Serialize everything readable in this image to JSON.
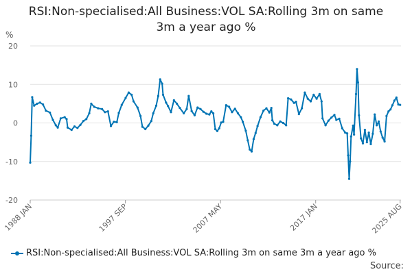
{
  "page": {
    "title_line1": "RSI:Non-specialised:All Business:VOL SA:Rolling 3m on same",
    "title_line2": "3m a year ago %",
    "source_label": "Source:",
    "series_color": "#0074b4",
    "legend_label": "RSI:Non-specialised:All Business:VOL SA:Rolling 3m on same 3m a year ago %"
  },
  "chart_data": {
    "type": "line",
    "title": "RSI:Non-specialised:All Business:VOL SA:Rolling 3m on same 3m a year ago %",
    "ylabel": "%",
    "xlabel": "",
    "ylim": [
      -20,
      20
    ],
    "yticks": [
      20,
      10,
      0,
      -10,
      -20
    ],
    "xlim": [
      1988.0,
      2025.67
    ],
    "xticks": [
      {
        "x": 1988.0,
        "label": "1988 JAN"
      },
      {
        "x": 1997.67,
        "label": "1997 SEP"
      },
      {
        "x": 2007.33,
        "label": "2007 MAY"
      },
      {
        "x": 2017.0,
        "label": "2017 JAN"
      },
      {
        "x": 2025.58,
        "label": "2025 AUG"
      }
    ],
    "grid": true,
    "legend": "bottom",
    "series": [
      {
        "name": "RSI:Non-specialised:All Business:VOL SA:Rolling 3m on same 3m a year ago %",
        "points": [
          [
            1988.0,
            -10.3
          ],
          [
            1988.1,
            -3.3
          ],
          [
            1988.2,
            6.7
          ],
          [
            1988.4,
            4.5
          ],
          [
            1988.7,
            5.0
          ],
          [
            1989.0,
            5.3
          ],
          [
            1989.3,
            4.8
          ],
          [
            1989.6,
            3.2
          ],
          [
            1990.0,
            2.7
          ],
          [
            1990.3,
            0.8
          ],
          [
            1990.6,
            -0.6
          ],
          [
            1990.8,
            -1.2
          ],
          [
            1991.1,
            1.2
          ],
          [
            1991.5,
            1.5
          ],
          [
            1991.7,
            1.0
          ],
          [
            1991.8,
            -1.2
          ],
          [
            1992.2,
            -1.8
          ],
          [
            1992.5,
            -0.9
          ],
          [
            1992.8,
            -1.3
          ],
          [
            1993.1,
            -0.5
          ],
          [
            1993.4,
            0.5
          ],
          [
            1993.7,
            1.0
          ],
          [
            1994.0,
            2.5
          ],
          [
            1994.2,
            5.0
          ],
          [
            1994.5,
            4.2
          ],
          [
            1994.9,
            3.8
          ],
          [
            1995.3,
            3.6
          ],
          [
            1995.6,
            2.8
          ],
          [
            1995.9,
            3.0
          ],
          [
            1996.2,
            -0.8
          ],
          [
            1996.5,
            0.3
          ],
          [
            1996.8,
            0.2
          ],
          [
            1997.0,
            2.6
          ],
          [
            1997.3,
            4.7
          ],
          [
            1997.7,
            6.5
          ],
          [
            1998.0,
            7.9
          ],
          [
            1998.3,
            7.3
          ],
          [
            1998.5,
            5.6
          ],
          [
            1998.9,
            4.0
          ],
          [
            1999.2,
            1.8
          ],
          [
            1999.4,
            -1.0
          ],
          [
            1999.7,
            -1.6
          ],
          [
            2000.0,
            -0.7
          ],
          [
            2000.3,
            0.5
          ],
          [
            2000.5,
            2.5
          ],
          [
            2000.8,
            4.5
          ],
          [
            2001.0,
            7.0
          ],
          [
            2001.2,
            11.3
          ],
          [
            2001.4,
            10.2
          ],
          [
            2001.5,
            7.3
          ],
          [
            2001.8,
            5.3
          ],
          [
            2002.0,
            4.4
          ],
          [
            2002.3,
            2.8
          ],
          [
            2002.6,
            5.9
          ],
          [
            2002.9,
            5.0
          ],
          [
            2003.2,
            3.9
          ],
          [
            2003.6,
            2.5
          ],
          [
            2003.9,
            3.6
          ],
          [
            2004.1,
            7.0
          ],
          [
            2004.4,
            3.1
          ],
          [
            2004.7,
            2.0
          ],
          [
            2005.0,
            4.0
          ],
          [
            2005.3,
            3.6
          ],
          [
            2005.6,
            2.9
          ],
          [
            2005.9,
            2.4
          ],
          [
            2006.2,
            2.2
          ],
          [
            2006.4,
            3.0
          ],
          [
            2006.6,
            2.5
          ],
          [
            2006.8,
            -1.6
          ],
          [
            2007.0,
            -2.1
          ],
          [
            2007.2,
            -1.4
          ],
          [
            2007.4,
            0.1
          ],
          [
            2007.6,
            0.3
          ],
          [
            2007.9,
            4.6
          ],
          [
            2008.2,
            4.2
          ],
          [
            2008.5,
            2.8
          ],
          [
            2008.8,
            3.7
          ],
          [
            2009.1,
            2.5
          ],
          [
            2009.4,
            1.5
          ],
          [
            2009.6,
            0.3
          ],
          [
            2009.9,
            -2.0
          ],
          [
            2010.1,
            -4.5
          ],
          [
            2010.3,
            -6.9
          ],
          [
            2010.5,
            -7.4
          ],
          [
            2010.7,
            -4.2
          ],
          [
            2010.9,
            -2.6
          ],
          [
            2011.1,
            -0.8
          ],
          [
            2011.4,
            1.5
          ],
          [
            2011.7,
            3.2
          ],
          [
            2012.0,
            3.8
          ],
          [
            2012.3,
            2.7
          ],
          [
            2012.5,
            3.9
          ],
          [
            2012.6,
            0.7
          ],
          [
            2012.8,
            -0.2
          ],
          [
            2013.1,
            -0.6
          ],
          [
            2013.4,
            0.4
          ],
          [
            2013.7,
            0.0
          ],
          [
            2014.0,
            -0.6
          ],
          [
            2014.2,
            6.4
          ],
          [
            2014.5,
            6.1
          ],
          [
            2014.8,
            5.2
          ],
          [
            2015.0,
            5.5
          ],
          [
            2015.3,
            2.3
          ],
          [
            2015.6,
            3.8
          ],
          [
            2015.9,
            7.9
          ],
          [
            2016.2,
            6.3
          ],
          [
            2016.5,
            5.6
          ],
          [
            2016.8,
            7.3
          ],
          [
            2017.1,
            6.3
          ],
          [
            2017.4,
            7.5
          ],
          [
            2017.6,
            5.6
          ],
          [
            2017.7,
            1.2
          ],
          [
            2018.0,
            -0.6
          ],
          [
            2018.3,
            0.6
          ],
          [
            2018.6,
            1.4
          ],
          [
            2018.9,
            2.1
          ],
          [
            2019.1,
            0.8
          ],
          [
            2019.4,
            1.1
          ],
          [
            2019.7,
            -1.4
          ],
          [
            2020.0,
            -2.5
          ],
          [
            2020.2,
            -2.7
          ],
          [
            2020.3,
            -8.4
          ],
          [
            2020.4,
            -14.5
          ],
          [
            2020.5,
            -10.0
          ],
          [
            2020.6,
            -3.5
          ],
          [
            2020.8,
            -0.7
          ],
          [
            2020.9,
            -3.0
          ],
          [
            2021.1,
            7.5
          ],
          [
            2021.2,
            14.0
          ],
          [
            2021.3,
            10.5
          ],
          [
            2021.4,
            2.0
          ],
          [
            2021.6,
            -4.0
          ],
          [
            2021.8,
            -5.3
          ],
          [
            2022.0,
            -1.8
          ],
          [
            2022.2,
            -5.0
          ],
          [
            2022.4,
            -2.5
          ],
          [
            2022.6,
            -5.5
          ],
          [
            2022.8,
            -2.8
          ],
          [
            2023.0,
            2.2
          ],
          [
            2023.2,
            -0.6
          ],
          [
            2023.4,
            0.4
          ],
          [
            2023.6,
            -2.2
          ],
          [
            2023.8,
            -3.8
          ],
          [
            2024.0,
            -4.8
          ],
          [
            2024.2,
            1.8
          ],
          [
            2024.4,
            3.0
          ],
          [
            2024.6,
            3.5
          ],
          [
            2024.8,
            4.6
          ],
          [
            2025.0,
            5.8
          ],
          [
            2025.2,
            6.6
          ],
          [
            2025.4,
            4.8
          ],
          [
            2025.58,
            4.7
          ]
        ]
      }
    ]
  }
}
